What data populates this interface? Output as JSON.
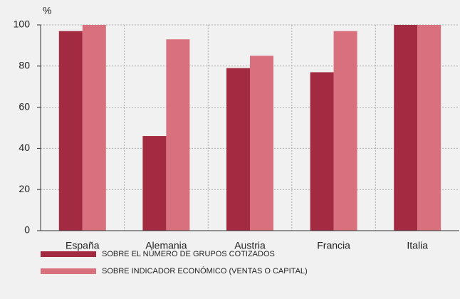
{
  "chart_data": {
    "type": "bar",
    "y_label": "%",
    "categories": [
      "España",
      "Alemania",
      "Austria",
      "Francia",
      "Italia"
    ],
    "series": [
      {
        "name": "SOBRE EL NÚMERO DE GRUPOS COTIZADOS",
        "color": "#a22a41",
        "values": [
          97,
          46,
          79,
          77,
          100
        ]
      },
      {
        "name": "SOBRE INDICADOR ECONÓMICO (VENTAS O CAPITAL)",
        "color": "#d9707e",
        "values": [
          100,
          93,
          85,
          97,
          100
        ]
      }
    ],
    "ylim": [
      0,
      100
    ],
    "yticks": [
      0,
      20,
      40,
      60,
      80,
      100
    ],
    "grid": true
  }
}
